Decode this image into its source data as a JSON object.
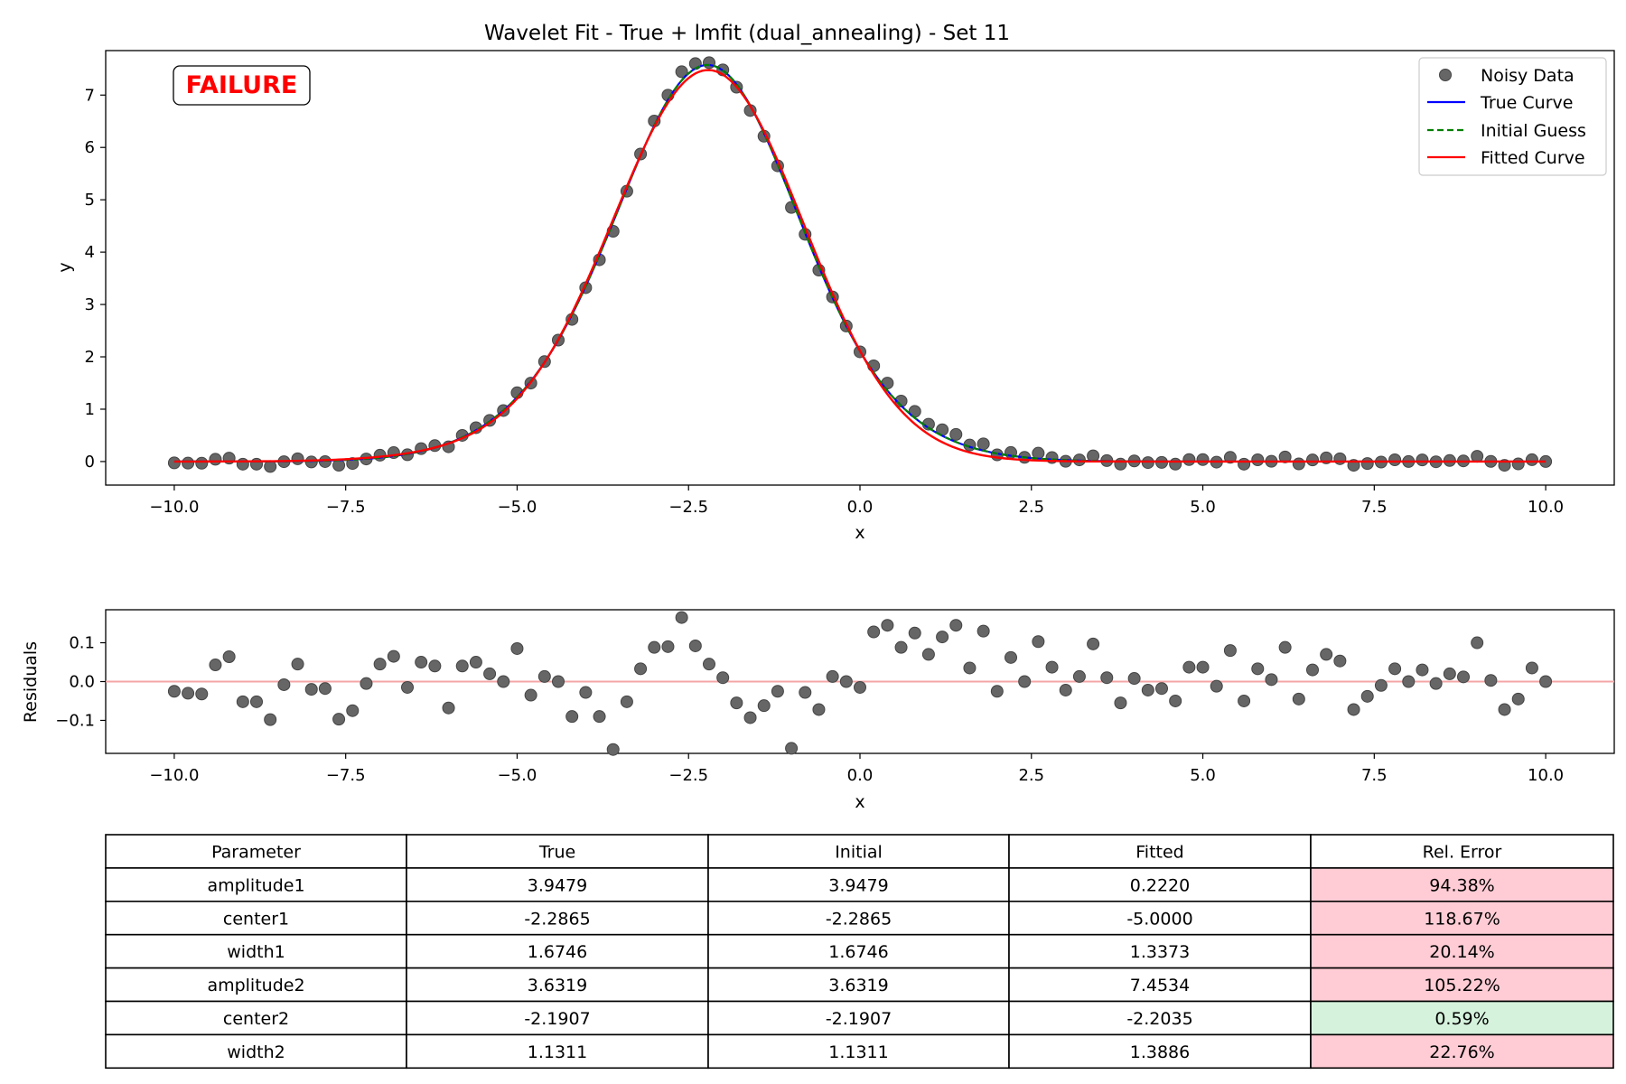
{
  "chart_data": [
    {
      "type": "line",
      "title": "Wavelet Fit - True + lmfit (dual_annealing) - Set 11",
      "xlabel": "x",
      "ylabel": "y",
      "xlim": [
        -11,
        11
      ],
      "ylim": [
        -0.45,
        7.85
      ],
      "xticks": [
        -10.0,
        -7.5,
        -5.0,
        -2.5,
        0.0,
        2.5,
        5.0,
        7.5,
        10.0
      ],
      "xtick_labels": [
        "−10.0",
        "−7.5",
        "−5.0",
        "−2.5",
        "0.0",
        "2.5",
        "5.0",
        "7.5",
        "10.0"
      ],
      "yticks": [
        0,
        1,
        2,
        3,
        4,
        5,
        6,
        7
      ],
      "ytick_labels": [
        "0",
        "1",
        "2",
        "3",
        "4",
        "5",
        "6",
        "7"
      ],
      "grid": false,
      "legend_position": "top-right",
      "badge": "FAILURE",
      "series": [
        {
          "name": "Noisy Data",
          "kind": "scatter",
          "color": "#555555"
        },
        {
          "name": "True Curve",
          "kind": "line",
          "color": "#0000ff",
          "params": {
            "amplitude1": 3.9479,
            "center1": -2.2865,
            "width1": 1.6746,
            "amplitude2": 3.6319,
            "center2": -2.1907,
            "width2": 1.1311
          }
        },
        {
          "name": "Initial Guess",
          "kind": "dashed",
          "color": "#008000",
          "params": {
            "amplitude1": 3.9479,
            "center1": -2.2865,
            "width1": 1.6746,
            "amplitude2": 3.6319,
            "center2": -2.1907,
            "width2": 1.1311
          }
        },
        {
          "name": "Fitted Curve",
          "kind": "line",
          "color": "#ff0000",
          "params": {
            "amplitude1": 0.222,
            "center1": -5.0,
            "width1": 1.3373,
            "amplitude2": 7.4534,
            "center2": -2.2035,
            "width2": 1.3886
          }
        }
      ],
      "x_range": [
        -10,
        10
      ],
      "n_points": 101
    },
    {
      "type": "scatter",
      "title": "",
      "xlabel": "x",
      "ylabel": "Residuals",
      "xlim": [
        -11,
        11
      ],
      "ylim": [
        -0.185,
        0.185
      ],
      "xticks": [
        -10.0,
        -7.5,
        -5.0,
        -2.5,
        0.0,
        2.5,
        5.0,
        7.5,
        10.0
      ],
      "xtick_labels": [
        "−10.0",
        "−7.5",
        "−5.0",
        "−2.5",
        "0.0",
        "2.5",
        "5.0",
        "7.5",
        "10.0"
      ],
      "yticks": [
        -0.1,
        0.0,
        0.1
      ],
      "ytick_labels": [
        "−0.1",
        "0.0",
        "0.1"
      ],
      "zero_line_color": "#f4a6a6",
      "x_range": [
        -10,
        10
      ],
      "residuals": [
        -0.025,
        -0.03,
        -0.032,
        0.043,
        0.064,
        -0.052,
        -0.052,
        -0.098,
        -0.008,
        0.045,
        -0.02,
        -0.018,
        -0.097,
        -0.075,
        -0.005,
        0.045,
        0.065,
        -0.015,
        0.05,
        0.04,
        -0.068,
        0.04,
        0.05,
        0.02,
        0.0,
        0.085,
        -0.035,
        0.013,
        0.0,
        -0.09,
        -0.028,
        -0.09,
        -0.175,
        -0.052,
        0.033,
        0.088,
        0.09,
        0.165,
        0.092,
        0.045,
        0.01,
        -0.055,
        -0.093,
        -0.062,
        -0.025,
        -0.172,
        -0.028,
        -0.072,
        0.013,
        0.0,
        -0.015,
        0.128,
        0.145,
        0.088,
        0.125,
        0.07,
        0.115,
        0.145,
        0.035,
        0.13,
        -0.025,
        0.062,
        0.0,
        0.103,
        0.037,
        -0.022,
        0.013,
        0.097,
        0.01,
        -0.055,
        0.008,
        -0.022,
        -0.018,
        -0.05,
        0.037,
        0.037,
        -0.012,
        0.08,
        -0.05,
        0.033,
        0.005,
        0.088,
        -0.045,
        0.03,
        0.07,
        0.053,
        -0.072,
        -0.038,
        -0.01,
        0.033,
        0.0,
        0.03,
        -0.005,
        0.02,
        0.012,
        0.1,
        0.003,
        -0.072,
        -0.045,
        0.035,
        0.0
      ]
    },
    {
      "type": "table",
      "columns": [
        "Parameter",
        "True",
        "Initial",
        "Fitted",
        "Rel. Error"
      ],
      "rows": [
        {
          "cells": [
            "amplitude1",
            "3.9479",
            "3.9479",
            "0.2220",
            "94.38%"
          ],
          "status": "bad"
        },
        {
          "cells": [
            "center1",
            "-2.2865",
            "-2.2865",
            "-5.0000",
            "118.67%"
          ],
          "status": "bad"
        },
        {
          "cells": [
            "width1",
            "1.6746",
            "1.6746",
            "1.3373",
            "20.14%"
          ],
          "status": "bad"
        },
        {
          "cells": [
            "amplitude2",
            "3.6319",
            "3.6319",
            "7.4534",
            "105.22%"
          ],
          "status": "bad"
        },
        {
          "cells": [
            "center2",
            "-2.1907",
            "-2.1907",
            "-2.2035",
            "0.59%"
          ],
          "status": "good"
        },
        {
          "cells": [
            "width2",
            "1.1311",
            "1.1311",
            "1.3886",
            "22.76%"
          ],
          "status": "bad"
        }
      ],
      "status_colors": {
        "bad": "#ffccd5",
        "good": "#d5f2dc"
      }
    }
  ]
}
